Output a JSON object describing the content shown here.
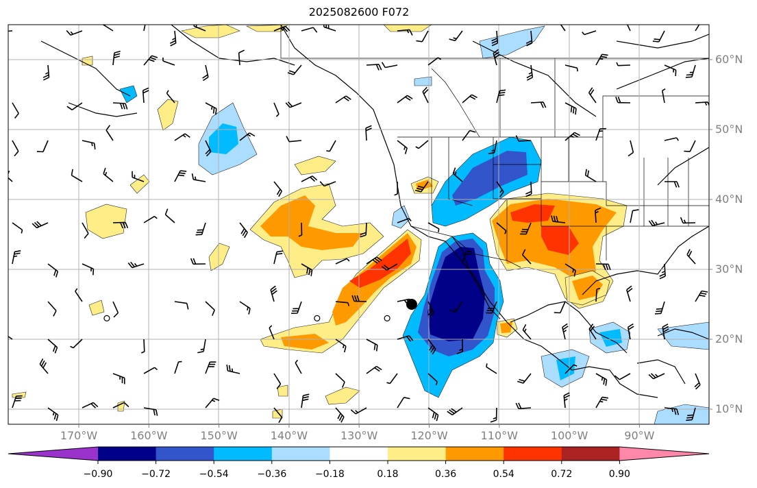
{
  "title": "2025082600 F072",
  "map": {
    "lat_labels": [
      {
        "lat": 60,
        "text": "60°N"
      },
      {
        "lat": 50,
        "text": "50°N"
      },
      {
        "lat": 40,
        "text": "40°N"
      },
      {
        "lat": 30,
        "text": "30°N"
      },
      {
        "lat": 20,
        "text": "20°N"
      },
      {
        "lat": 10,
        "text": "10°N"
      }
    ],
    "lon_labels": [
      {
        "lon": -170,
        "text": "170°W"
      },
      {
        "lon": -160,
        "text": "160°W"
      },
      {
        "lon": -150,
        "text": "150°W"
      },
      {
        "lon": -140,
        "text": "140°W"
      },
      {
        "lon": -130,
        "text": "130°W"
      },
      {
        "lon": -120,
        "text": "120°W"
      },
      {
        "lon": -110,
        "text": "110°W"
      },
      {
        "lon": -100,
        "text": "100°W"
      },
      {
        "lon": -90,
        "text": "90°W"
      }
    ],
    "grid": true,
    "marker": {
      "lon": -122.5,
      "lat": 25,
      "symbol": "filled-circle"
    },
    "calm_circles": [
      {
        "lon": -166,
        "lat": 23
      },
      {
        "lon": -136,
        "lat": 23
      },
      {
        "lon": -126,
        "lat": 23
      }
    ]
  },
  "colorbar": {
    "extend": "both",
    "bins": [
      {
        "color": "#9933cc"
      },
      {
        "color": "#000088"
      },
      {
        "color": "#3355cc"
      },
      {
        "color": "#00bbff"
      },
      {
        "color": "#aaddff"
      },
      {
        "color": "#ffffff"
      },
      {
        "color": "#ffee88"
      },
      {
        "color": "#ff9900"
      },
      {
        "color": "#ff3300"
      },
      {
        "color": "#aa2222"
      },
      {
        "color": "#ff88aa"
      }
    ],
    "tick_labels": [
      "−0.90",
      "−0.72",
      "−0.54",
      "−0.36",
      "−0.18",
      "0.18",
      "0.36",
      "0.54",
      "0.72",
      "0.90"
    ]
  }
}
